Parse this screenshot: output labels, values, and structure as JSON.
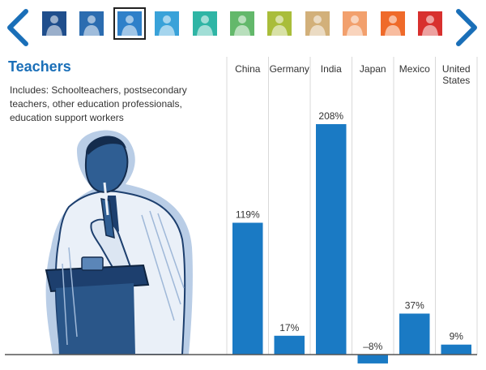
{
  "nav": {
    "prev_icon": "chevron-left-icon",
    "next_icon": "chevron-right-icon",
    "color": "#1a6fb8"
  },
  "thumbnails": [
    {
      "name": "occupation-1",
      "color": "#1f4e8c"
    },
    {
      "name": "occupation-2",
      "color": "#2b6cb0"
    },
    {
      "name": "teachers",
      "color": "#2f80c9",
      "selected": true
    },
    {
      "name": "occupation-4",
      "color": "#39a2d9"
    },
    {
      "name": "occupation-5",
      "color": "#2fb5a5"
    },
    {
      "name": "occupation-6",
      "color": "#63b86b"
    },
    {
      "name": "occupation-7",
      "color": "#a9bd3a"
    },
    {
      "name": "occupation-8",
      "color": "#d2b07a"
    },
    {
      "name": "occupation-9",
      "color": "#f2a06d"
    },
    {
      "name": "occupation-10",
      "color": "#ef6a2a"
    },
    {
      "name": "occupation-11",
      "color": "#d8302e"
    }
  ],
  "panel": {
    "title": "Teachers",
    "description": "Includes: Schoolteachers, postsecondary teachers, other education professionals, education support workers"
  },
  "chart_data": {
    "type": "bar",
    "categories": [
      [
        "China"
      ],
      [
        "Germany"
      ],
      [
        "India"
      ],
      [
        "Japan"
      ],
      [
        "Mexico"
      ],
      [
        "United",
        "States"
      ]
    ],
    "values": [
      119,
      17,
      208,
      -8,
      37,
      9
    ],
    "value_labels": [
      "119%",
      "17%",
      "208%",
      "–8%",
      "37%",
      "9%"
    ],
    "ylim": [
      -8,
      208
    ],
    "bar_color": "#1a7ac4",
    "grid": "vertical separators between categories",
    "title": "",
    "xlabel": "",
    "ylabel": ""
  }
}
